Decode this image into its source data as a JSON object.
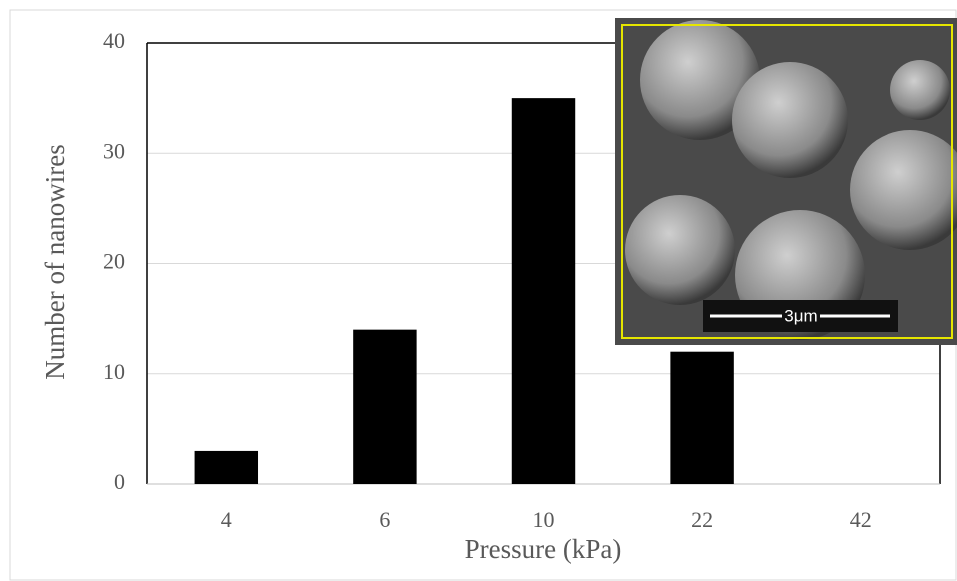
{
  "chart_data": {
    "type": "bar",
    "x_label": "Pressure (kPa)",
    "y_label": "Number of nanowires",
    "categories": [
      "4",
      "6",
      "10",
      "22",
      "42"
    ],
    "values": [
      3,
      14,
      35,
      12,
      0
    ],
    "color": "#000000",
    "ylim": [
      0,
      40
    ],
    "yticks": [
      0,
      10,
      20,
      30,
      40
    ],
    "grid": true,
    "annotations": [
      "3μm"
    ]
  }
}
